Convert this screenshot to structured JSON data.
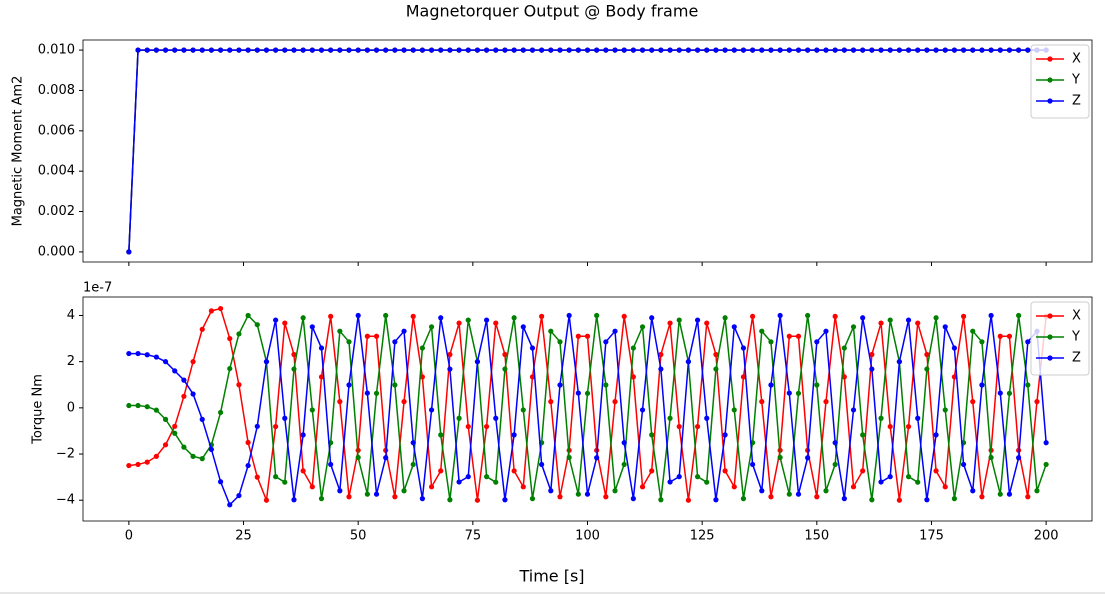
{
  "title": "Magnetorquer Output @ Body frame",
  "chart_data": [
    {
      "type": "line",
      "ylabel": "Magnetic Moment Am2",
      "legend": "upper right",
      "grid": false,
      "xlim": [
        -10,
        210
      ],
      "xticks": [
        0,
        25,
        50,
        75,
        100,
        125,
        150,
        175,
        200
      ],
      "ylim": [
        -0.0005,
        0.0105
      ],
      "yticks": [
        {
          "value": 0,
          "label": "0.000"
        },
        {
          "value": 0.002,
          "label": "0.002"
        },
        {
          "value": 0.004,
          "label": "0.004"
        },
        {
          "value": 0.006,
          "label": "0.006"
        },
        {
          "value": 0.008,
          "label": "0.008"
        },
        {
          "value": 0.01,
          "label": "0.010"
        }
      ],
      "x": [
        0,
        2,
        4,
        6,
        8,
        10,
        12,
        14,
        16,
        18,
        20,
        22,
        24,
        26,
        28,
        30,
        32,
        34,
        36,
        38,
        40,
        42,
        44,
        46,
        48,
        50,
        52,
        54,
        56,
        58,
        60,
        62,
        64,
        66,
        68,
        70,
        72,
        74,
        76,
        78,
        80,
        82,
        84,
        86,
        88,
        90,
        92,
        94,
        96,
        98,
        100,
        102,
        104,
        106,
        108,
        110,
        112,
        114,
        116,
        118,
        120,
        122,
        124,
        126,
        128,
        130,
        132,
        134,
        136,
        138,
        140,
        142,
        144,
        146,
        148,
        150,
        152,
        154,
        156,
        158,
        160,
        162,
        164,
        166,
        168,
        170,
        172,
        174,
        176,
        178,
        180,
        182,
        184,
        186,
        188,
        190,
        192,
        194,
        196,
        198,
        200
      ],
      "series": [
        {
          "name": "X",
          "color": "#ff0000",
          "values": [
            0,
            0.01,
            0.01,
            0.01,
            0.01,
            0.01,
            0.01,
            0.01,
            0.01,
            0.01,
            0.01,
            0.01,
            0.01,
            0.01,
            0.01,
            0.01,
            0.01,
            0.01,
            0.01,
            0.01,
            0.01,
            0.01,
            0.01,
            0.01,
            0.01,
            0.01,
            0.01,
            0.01,
            0.01,
            0.01,
            0.01,
            0.01,
            0.01,
            0.01,
            0.01,
            0.01,
            0.01,
            0.01,
            0.01,
            0.01,
            0.01,
            0.01,
            0.01,
            0.01,
            0.01,
            0.01,
            0.01,
            0.01,
            0.01,
            0.01,
            0.01,
            0.01,
            0.01,
            0.01,
            0.01,
            0.01,
            0.01,
            0.01,
            0.01,
            0.01,
            0.01,
            0.01,
            0.01,
            0.01,
            0.01,
            0.01,
            0.01,
            0.01,
            0.01,
            0.01,
            0.01,
            0.01,
            0.01,
            0.01,
            0.01,
            0.01,
            0.01,
            0.01,
            0.01,
            0.01,
            0.01,
            0.01,
            0.01,
            0.01,
            0.01,
            0.01,
            0.01,
            0.01,
            0.01,
            0.01,
            0.01,
            0.01,
            0.01,
            0.01,
            0.01,
            0.01,
            0.01,
            0.01,
            0.01,
            0.01,
            0.01
          ]
        },
        {
          "name": "Y",
          "color": "#008000",
          "values": [
            0,
            0.01,
            0.01,
            0.01,
            0.01,
            0.01,
            0.01,
            0.01,
            0.01,
            0.01,
            0.01,
            0.01,
            0.01,
            0.01,
            0.01,
            0.01,
            0.01,
            0.01,
            0.01,
            0.01,
            0.01,
            0.01,
            0.01,
            0.01,
            0.01,
            0.01,
            0.01,
            0.01,
            0.01,
            0.01,
            0.01,
            0.01,
            0.01,
            0.01,
            0.01,
            0.01,
            0.01,
            0.01,
            0.01,
            0.01,
            0.01,
            0.01,
            0.01,
            0.01,
            0.01,
            0.01,
            0.01,
            0.01,
            0.01,
            0.01,
            0.01,
            0.01,
            0.01,
            0.01,
            0.01,
            0.01,
            0.01,
            0.01,
            0.01,
            0.01,
            0.01,
            0.01,
            0.01,
            0.01,
            0.01,
            0.01,
            0.01,
            0.01,
            0.01,
            0.01,
            0.01,
            0.01,
            0.01,
            0.01,
            0.01,
            0.01,
            0.01,
            0.01,
            0.01,
            0.01,
            0.01,
            0.01,
            0.01,
            0.01,
            0.01,
            0.01,
            0.01,
            0.01,
            0.01,
            0.01,
            0.01,
            0.01,
            0.01,
            0.01,
            0.01,
            0.01,
            0.01,
            0.01,
            0.01,
            0.01,
            0.01
          ]
        },
        {
          "name": "Z",
          "color": "#0000ff",
          "values": [
            0,
            0.01,
            0.01,
            0.01,
            0.01,
            0.01,
            0.01,
            0.01,
            0.01,
            0.01,
            0.01,
            0.01,
            0.01,
            0.01,
            0.01,
            0.01,
            0.01,
            0.01,
            0.01,
            0.01,
            0.01,
            0.01,
            0.01,
            0.01,
            0.01,
            0.01,
            0.01,
            0.01,
            0.01,
            0.01,
            0.01,
            0.01,
            0.01,
            0.01,
            0.01,
            0.01,
            0.01,
            0.01,
            0.01,
            0.01,
            0.01,
            0.01,
            0.01,
            0.01,
            0.01,
            0.01,
            0.01,
            0.01,
            0.01,
            0.01,
            0.01,
            0.01,
            0.01,
            0.01,
            0.01,
            0.01,
            0.01,
            0.01,
            0.01,
            0.01,
            0.01,
            0.01,
            0.01,
            0.01,
            0.01,
            0.01,
            0.01,
            0.01,
            0.01,
            0.01,
            0.01,
            0.01,
            0.01,
            0.01,
            0.01,
            0.01,
            0.01,
            0.01,
            0.01,
            0.01,
            0.01,
            0.01,
            0.01,
            0.01,
            0.01,
            0.01,
            0.01,
            0.01,
            0.01,
            0.01,
            0.01,
            0.01,
            0.01,
            0.01,
            0.01,
            0.01,
            0.01,
            0.01,
            0.01,
            0.01,
            0.01
          ]
        }
      ]
    },
    {
      "type": "line",
      "ylabel": "Torque Nm",
      "xlabel": "Time [s]",
      "y_offset_label": "1e-7",
      "legend": "upper right",
      "grid": false,
      "xlim": [
        -10,
        210
      ],
      "xticks": [
        0,
        25,
        50,
        75,
        100,
        125,
        150,
        175,
        200
      ],
      "ylim": [
        -4.9,
        4.8
      ],
      "yticks": [
        {
          "value": -4,
          "label": "−4"
        },
        {
          "value": -2,
          "label": "−2"
        },
        0,
        2,
        4
      ],
      "x": [
        0,
        2,
        4,
        6,
        8,
        10,
        12,
        14,
        16,
        18,
        20,
        22,
        24,
        26,
        28,
        30,
        32,
        34,
        36,
        38,
        40,
        42,
        44,
        46,
        48,
        50,
        52,
        54,
        56,
        58,
        60,
        62,
        64,
        66,
        68,
        70,
        72,
        74,
        76,
        78,
        80,
        82,
        84,
        86,
        88,
        90,
        92,
        94,
        96,
        98,
        100,
        102,
        104,
        106,
        108,
        110,
        112,
        114,
        116,
        118,
        120,
        122,
        124,
        126,
        128,
        130,
        132,
        134,
        136,
        138,
        140,
        142,
        144,
        146,
        148,
        150,
        152,
        154,
        156,
        158,
        160,
        162,
        164,
        166,
        168,
        170,
        172,
        174,
        176,
        178,
        180,
        182,
        184,
        186,
        188,
        190,
        192,
        194,
        196,
        198,
        200
      ],
      "series": [
        {
          "name": "X",
          "color": "#ff0000",
          "values": [
            -2.5,
            -2.45,
            -2.35,
            -2.1,
            -1.6,
            -0.8,
            0.5,
            2.0,
            3.4,
            4.2,
            4.3,
            3.0,
            1.0,
            -1.5,
            -3.0,
            -4,
            -0.81,
            3.67,
            2.31,
            -2.73,
            -3.42,
            1.34,
            3.96,
            0.27,
            -3.85,
            -1.84,
            3.1,
            3.1,
            -1.84,
            -3.85,
            0.27,
            3.96,
            1.34,
            -3.42,
            -2.73,
            2.31,
            3.67,
            -0.81,
            -4,
            -0.81,
            3.67,
            2.31,
            -2.73,
            -3.42,
            1.34,
            3.96,
            0.27,
            -3.85,
            -1.84,
            3.1,
            3.1,
            -1.84,
            -3.85,
            0.27,
            3.96,
            1.34,
            -3.42,
            -2.73,
            2.31,
            3.67,
            -0.81,
            -4,
            -0.81,
            3.67,
            2.31,
            -2.73,
            -3.42,
            1.34,
            3.96,
            0.27,
            -3.85,
            -1.84,
            3.1,
            3.1,
            -1.84,
            -3.85,
            0.27,
            3.96,
            1.34,
            -3.42,
            -2.73,
            2.31,
            3.67,
            -0.81,
            -4,
            -0.81,
            3.67,
            2.31,
            -2.73,
            -3.42,
            1.34,
            3.96,
            0.27,
            -3.85,
            -1.84,
            3.1,
            3.1,
            -1.84,
            -3.85,
            0.27,
            3.96
          ]
        },
        {
          "name": "Y",
          "color": "#008000",
          "values": [
            0.1,
            0.1,
            0.05,
            -0.1,
            -0.5,
            -1.1,
            -1.7,
            -2.1,
            -2.2,
            -1.6,
            -0.2,
            1.7,
            3.2,
            4.0,
            3.6,
            2,
            -2.98,
            -3.22,
            1.68,
            3.9,
            -0.09,
            -3.93,
            -1.51,
            3.32,
            2.86,
            -2.15,
            -3.74,
            0.63,
            4.0,
            0.99,
            -3.59,
            -2.45,
            2.59,
            3.51,
            -1.17,
            -3.98,
            -0.45,
            3.8,
            2,
            -2.98,
            -3.22,
            1.68,
            3.9,
            -0.09,
            -3.93,
            -1.51,
            3.32,
            2.86,
            -2.15,
            -3.74,
            0.63,
            4.0,
            0.99,
            -3.59,
            -2.45,
            2.59,
            3.51,
            -1.17,
            -3.98,
            -0.45,
            3.8,
            2,
            -2.98,
            -3.22,
            1.68,
            3.9,
            -0.09,
            -3.93,
            -1.51,
            3.32,
            2.86,
            -2.15,
            -3.74,
            0.63,
            4.0,
            0.99,
            -3.59,
            -2.45,
            2.59,
            3.51,
            -1.17,
            -3.98,
            -0.45,
            3.8,
            2,
            -2.98,
            -3.22,
            1.68,
            3.9,
            -0.09,
            -3.93,
            -1.51,
            3.32,
            2.86,
            -2.15,
            -3.74,
            0.63,
            4.0,
            0.99,
            -3.59,
            -2.45
          ]
        },
        {
          "name": "Z",
          "color": "#0000ff",
          "values": [
            2.35,
            2.35,
            2.3,
            2.2,
            2.0,
            1.6,
            1.2,
            0.6,
            -0.5,
            -1.8,
            -3.2,
            -4.2,
            -3.8,
            -2.5,
            -0.8,
            2,
            3.8,
            -0.45,
            -3.98,
            -1.17,
            3.51,
            2.59,
            -2.45,
            -3.59,
            0.99,
            4.0,
            0.64,
            -3.74,
            -2.16,
            2.86,
            3.32,
            -1.51,
            -3.93,
            -0.09,
            3.9,
            1.68,
            -3.21,
            -2.98,
            2,
            3.8,
            -0.45,
            -3.98,
            -1.17,
            3.51,
            2.59,
            -2.45,
            -3.59,
            0.99,
            4.0,
            0.64,
            -3.74,
            -2.16,
            2.86,
            3.32,
            -1.51,
            -3.93,
            -0.09,
            3.9,
            1.68,
            -3.21,
            -2.98,
            2,
            3.8,
            -0.45,
            -3.98,
            -1.17,
            3.51,
            2.59,
            -2.45,
            -3.59,
            0.99,
            4.0,
            0.64,
            -3.74,
            -2.16,
            2.86,
            3.32,
            -1.51,
            -3.93,
            -0.09,
            3.9,
            1.68,
            -3.21,
            -2.98,
            2,
            3.8,
            -0.45,
            -3.98,
            -1.17,
            3.51,
            2.59,
            -2.45,
            -3.59,
            0.99,
            4.0,
            0.64,
            -3.74,
            -2.16,
            2.86,
            3.32,
            -1.51
          ]
        }
      ]
    }
  ]
}
